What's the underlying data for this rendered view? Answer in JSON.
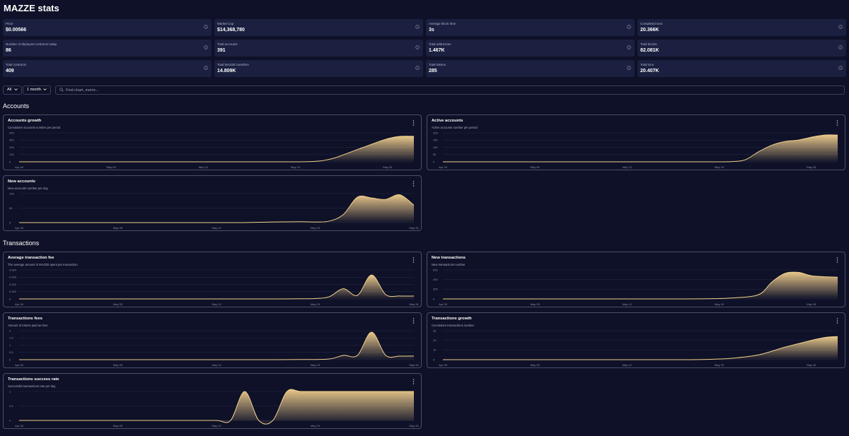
{
  "page": {
    "title": "MAZZE stats"
  },
  "stats": [
    {
      "label": "Price",
      "value": "$0.00566"
    },
    {
      "label": "Market Cap",
      "value": "$14,368,780"
    },
    {
      "label": "Average block time",
      "value": "3s"
    },
    {
      "label": "Completed txns",
      "value": "20.366K"
    },
    {
      "label": "Number of deployed contracts today",
      "value": "86"
    },
    {
      "label": "Total accounts",
      "value": "391"
    },
    {
      "label": "Total addresses",
      "value": "1.467K"
    },
    {
      "label": "Total blocks",
      "value": "82.081K"
    },
    {
      "label": "Total contracts",
      "value": "409"
    },
    {
      "label": "Total MAZZE transfers",
      "value": "14.809K"
    },
    {
      "label": "Total tokens",
      "value": "285"
    },
    {
      "label": "Total txns",
      "value": "20.407K"
    }
  ],
  "filters": {
    "category": "All",
    "interval": "1 month",
    "search_placeholder": "Find chart, metric..."
  },
  "sections": {
    "accounts": "Accounts",
    "transactions": "Transactions"
  },
  "colors": {
    "background": "#0e1127",
    "card": "#1b2040",
    "accent": "#f3d08e",
    "border": "#4a4f6a"
  },
  "chart_data": [
    {
      "type": "area",
      "title": "Accounts growth",
      "subtitle": "Cumulative accounts number per period",
      "x": [
        "Apr 28",
        "Apr 30",
        "May 02",
        "May 04",
        "May 06",
        "May 08",
        "May 10",
        "May 12",
        "May 14",
        "May 16",
        "May 18",
        "May 20",
        "May 21",
        "May 22",
        "May 24",
        "May 26",
        "May 27",
        "May 28"
      ],
      "values": [
        0,
        0,
        0,
        0,
        0,
        0,
        0,
        0,
        0,
        0,
        0,
        3,
        15,
        55,
        190,
        320,
        352,
        352
      ],
      "xticks": [
        "Apr 28",
        "May 05",
        "May 12",
        "May 19",
        "May 26"
      ],
      "yticks": [
        "0",
        "100",
        "200",
        "300",
        "400"
      ],
      "ylim": [
        0,
        400
      ]
    },
    {
      "type": "area",
      "title": "Active accounts",
      "subtitle": "Active accounts number per period",
      "x": [
        "Apr 28",
        "Apr 30",
        "May 02",
        "May 04",
        "May 06",
        "May 08",
        "May 10",
        "May 12",
        "May 14",
        "May 16",
        "May 18",
        "May 20",
        "May 21",
        "May 22",
        "May 23",
        "May 24",
        "May 25",
        "May 26",
        "May 27",
        "May 28"
      ],
      "values": [
        0,
        0,
        0,
        0,
        0,
        0,
        0,
        0,
        0,
        0,
        0,
        2,
        15,
        70,
        115,
        140,
        150,
        170,
        185,
        185
      ],
      "xticks": [
        "Apr 28",
        "May 05",
        "May 12",
        "May 19",
        "May 26"
      ],
      "yticks": [
        "0",
        "50",
        "100",
        "150",
        "200"
      ],
      "ylim": [
        0,
        200
      ]
    },
    {
      "type": "area",
      "title": "New accounts",
      "subtitle": "New accounts number per day",
      "x": [
        "Apr 28",
        "Apr 30",
        "May 02",
        "May 04",
        "May 06",
        "May 08",
        "May 10",
        "May 12",
        "May 14",
        "May 16",
        "May 18",
        "May 19",
        "May 20",
        "May 21",
        "May 22",
        "May 23",
        "May 24",
        "May 25",
        "May 26"
      ],
      "values": [
        0,
        0,
        0,
        0,
        0,
        0,
        0,
        0,
        0,
        2,
        3,
        2,
        5,
        28,
        88,
        85,
        80,
        96,
        60
      ],
      "xticks": [
        "Apr 28",
        "May 05",
        "May 12",
        "May 19",
        "May 26"
      ],
      "yticks": [
        "0",
        "50",
        "100"
      ],
      "ylim": [
        0,
        100
      ]
    },
    {
      "type": "area",
      "title": "Average transaction fee",
      "subtitle": "The average amount in MAZZE spent per transaction",
      "x": [
        "Apr 28",
        "Apr 30",
        "May 02",
        "May 04",
        "May 06",
        "May 08",
        "May 10",
        "May 12",
        "May 14",
        "May 16",
        "May 18",
        "May 19",
        "May 20",
        "May 21",
        "May 22",
        "May 23",
        "May 24",
        "May 25",
        "May 26"
      ],
      "values": [
        0,
        0,
        0,
        0,
        0,
        0,
        0,
        0,
        0,
        0,
        2e-05,
        5e-05,
        0.0003,
        0.0014,
        0.0005,
        0.0033,
        0.0006,
        0.0004,
        0.0004
      ],
      "xticks": [
        "Apr 28",
        "May 05",
        "May 12",
        "May 19",
        "May 26"
      ],
      "yticks": [
        "0",
        "0.001",
        "0.002",
        "0.003",
        "0.004"
      ],
      "ylim": [
        0,
        0.004
      ]
    },
    {
      "type": "area",
      "title": "New transactions",
      "subtitle": "New transactions number",
      "x": [
        "Apr 28",
        "Apr 30",
        "May 02",
        "May 04",
        "May 06",
        "May 08",
        "May 10",
        "May 12",
        "May 14",
        "May 16",
        "May 18",
        "May 20",
        "May 22",
        "May 23",
        "May 24",
        "May 25",
        "May 26",
        "May 27",
        "May 28"
      ],
      "values": [
        0,
        0,
        0,
        0,
        0,
        0,
        0,
        0,
        0,
        0,
        3,
        20,
        90,
        350,
        530,
        550,
        480,
        460,
        450
      ],
      "xticks": [
        "Apr 28",
        "May 05",
        "May 12",
        "May 19",
        "May 26"
      ],
      "yticks": [
        "0",
        "200",
        "400",
        "600"
      ],
      "ylim": [
        0,
        600
      ]
    },
    {
      "type": "area",
      "title": "Transactions fees",
      "subtitle": "Amount of tokens paid as fees",
      "x": [
        "Apr 28",
        "Apr 30",
        "May 02",
        "May 04",
        "May 06",
        "May 08",
        "May 10",
        "May 12",
        "May 14",
        "May 16",
        "May 18",
        "May 20",
        "May 21",
        "May 22",
        "May 23",
        "May 24",
        "May 25",
        "May 26"
      ],
      "values": [
        0,
        0,
        0,
        0,
        0,
        0,
        0,
        0,
        0,
        0,
        0.01,
        0.05,
        0.3,
        0.3,
        1.9,
        0.3,
        0.25,
        0.25
      ],
      "xticks": [
        "Apr 28",
        "May 05",
        "May 12",
        "May 19",
        "May 26"
      ],
      "yticks": [
        "0",
        "0.5",
        "1",
        "1.5",
        "2"
      ],
      "ylim": [
        0,
        2
      ]
    },
    {
      "type": "area",
      "title": "Transactions growth",
      "subtitle": "Cumulative transactions number",
      "x": [
        "Apr 28",
        "Apr 30",
        "May 02",
        "May 04",
        "May 06",
        "May 08",
        "May 10",
        "May 12",
        "May 14",
        "May 16",
        "May 18",
        "May 20",
        "May 22",
        "May 24",
        "May 26",
        "May 27",
        "May 28"
      ],
      "values": [
        0,
        0,
        0,
        0,
        0,
        0,
        0,
        0,
        0,
        0,
        0.3,
        1.5,
        5,
        13,
        20,
        23,
        24
      ],
      "xticks": [
        "Apr 28",
        "May 05",
        "May 12",
        "May 19",
        "May 26"
      ],
      "yticks": [
        "0",
        "10",
        "20",
        "30"
      ],
      "ylim": [
        0,
        30
      ]
    },
    {
      "type": "area",
      "title": "Transactions success rate",
      "subtitle": "Successful transactions rate per day",
      "x": [
        "Apr 28",
        "Apr 30",
        "May 02",
        "May 04",
        "May 06",
        "May 08",
        "May 10",
        "May 12",
        "May 13",
        "May 14",
        "May 15",
        "May 16",
        "May 17",
        "May 18",
        "May 20",
        "May 22",
        "May 24",
        "May 26"
      ],
      "values": [
        0,
        0,
        0,
        0,
        0,
        0,
        0,
        0,
        0,
        1,
        0,
        0,
        1,
        1,
        1,
        1,
        1,
        1
      ],
      "xticks": [
        "Apr 28",
        "May 05",
        "May 12",
        "May 19",
        "May 26"
      ],
      "yticks": [
        "0",
        "0.5",
        "1"
      ],
      "ylim": [
        0,
        1
      ]
    }
  ]
}
